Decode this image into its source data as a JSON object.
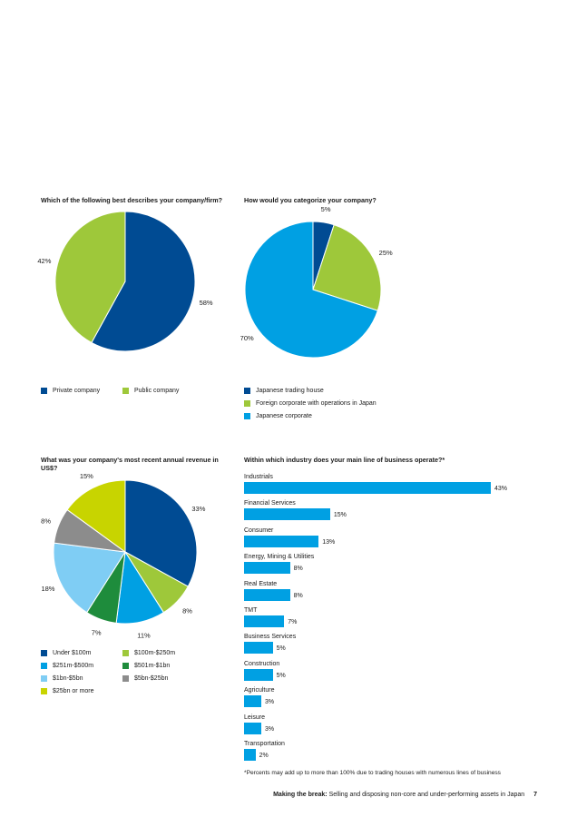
{
  "chart_data": [
    {
      "type": "pie",
      "title": "Which of the following best describes your company/firm?",
      "slices": [
        {
          "label": "Private company",
          "value": 58,
          "color": "#004B93"
        },
        {
          "label": "Public company",
          "value": 42,
          "color": "#9EC83A"
        }
      ]
    },
    {
      "type": "pie",
      "title": "How would you categorize your company?",
      "slices": [
        {
          "label": "Japanese trading house",
          "value": 5,
          "color": "#004B93"
        },
        {
          "label": "Foreign corporate with operations in Japan",
          "value": 25,
          "color": "#9EC83A"
        },
        {
          "label": "Japanese corporate",
          "value": 70,
          "color": "#00A0E3"
        }
      ]
    },
    {
      "type": "pie",
      "title": "What was your company's most recent annual revenue in US$?",
      "slices": [
        {
          "label": "Under $100m",
          "value": 33,
          "color": "#004B93"
        },
        {
          "label": "$100m-$250m",
          "value": 8,
          "color": "#9EC83A"
        },
        {
          "label": "$251m-$500m",
          "value": 11,
          "color": "#00A0E3"
        },
        {
          "label": "$501m-$1bn",
          "value": 7,
          "color": "#1E8C3C"
        },
        {
          "label": "$1bn-$5bn",
          "value": 18,
          "color": "#7FCDF4"
        },
        {
          "label": "$5bn-$25bn",
          "value": 8,
          "color": "#8C8C8C"
        },
        {
          "label": "$25bn or more",
          "value": 15,
          "color": "#C8D400"
        }
      ]
    },
    {
      "type": "bar",
      "orientation": "horizontal",
      "title": "Within which industry does your main line of business operate?*",
      "categories": [
        "Industrials",
        "Financial Services",
        "Consumer",
        "Energy, Mining & Utilities",
        "Real Estate",
        "TMT",
        "Business Services",
        "Construction",
        "Agriculture",
        "Leisure",
        "Transportation"
      ],
      "values": [
        43,
        15,
        13,
        8,
        8,
        7,
        5,
        5,
        3,
        3,
        2
      ],
      "color": "#00A0E3",
      "xlim": [
        0,
        43
      ]
    }
  ],
  "pie_pct_labels": [
    [
      "58%",
      "42%"
    ],
    [
      "5%",
      "25%",
      "70%"
    ],
    [
      "33%",
      "8%",
      "11%",
      "7%",
      "18%",
      "8%",
      "15%"
    ]
  ],
  "bar_value_labels": [
    "43%",
    "15%",
    "13%",
    "8%",
    "8%",
    "7%",
    "5%",
    "5%",
    "3%",
    "3%",
    "2%"
  ],
  "footnote": "*Percents may add up to more than 100% due to trading houses with numerous lines of business",
  "footer": {
    "bold": "Making the break:",
    "text": "Selling and disposing non-core and under-performing assets in Japan",
    "page": "7"
  }
}
